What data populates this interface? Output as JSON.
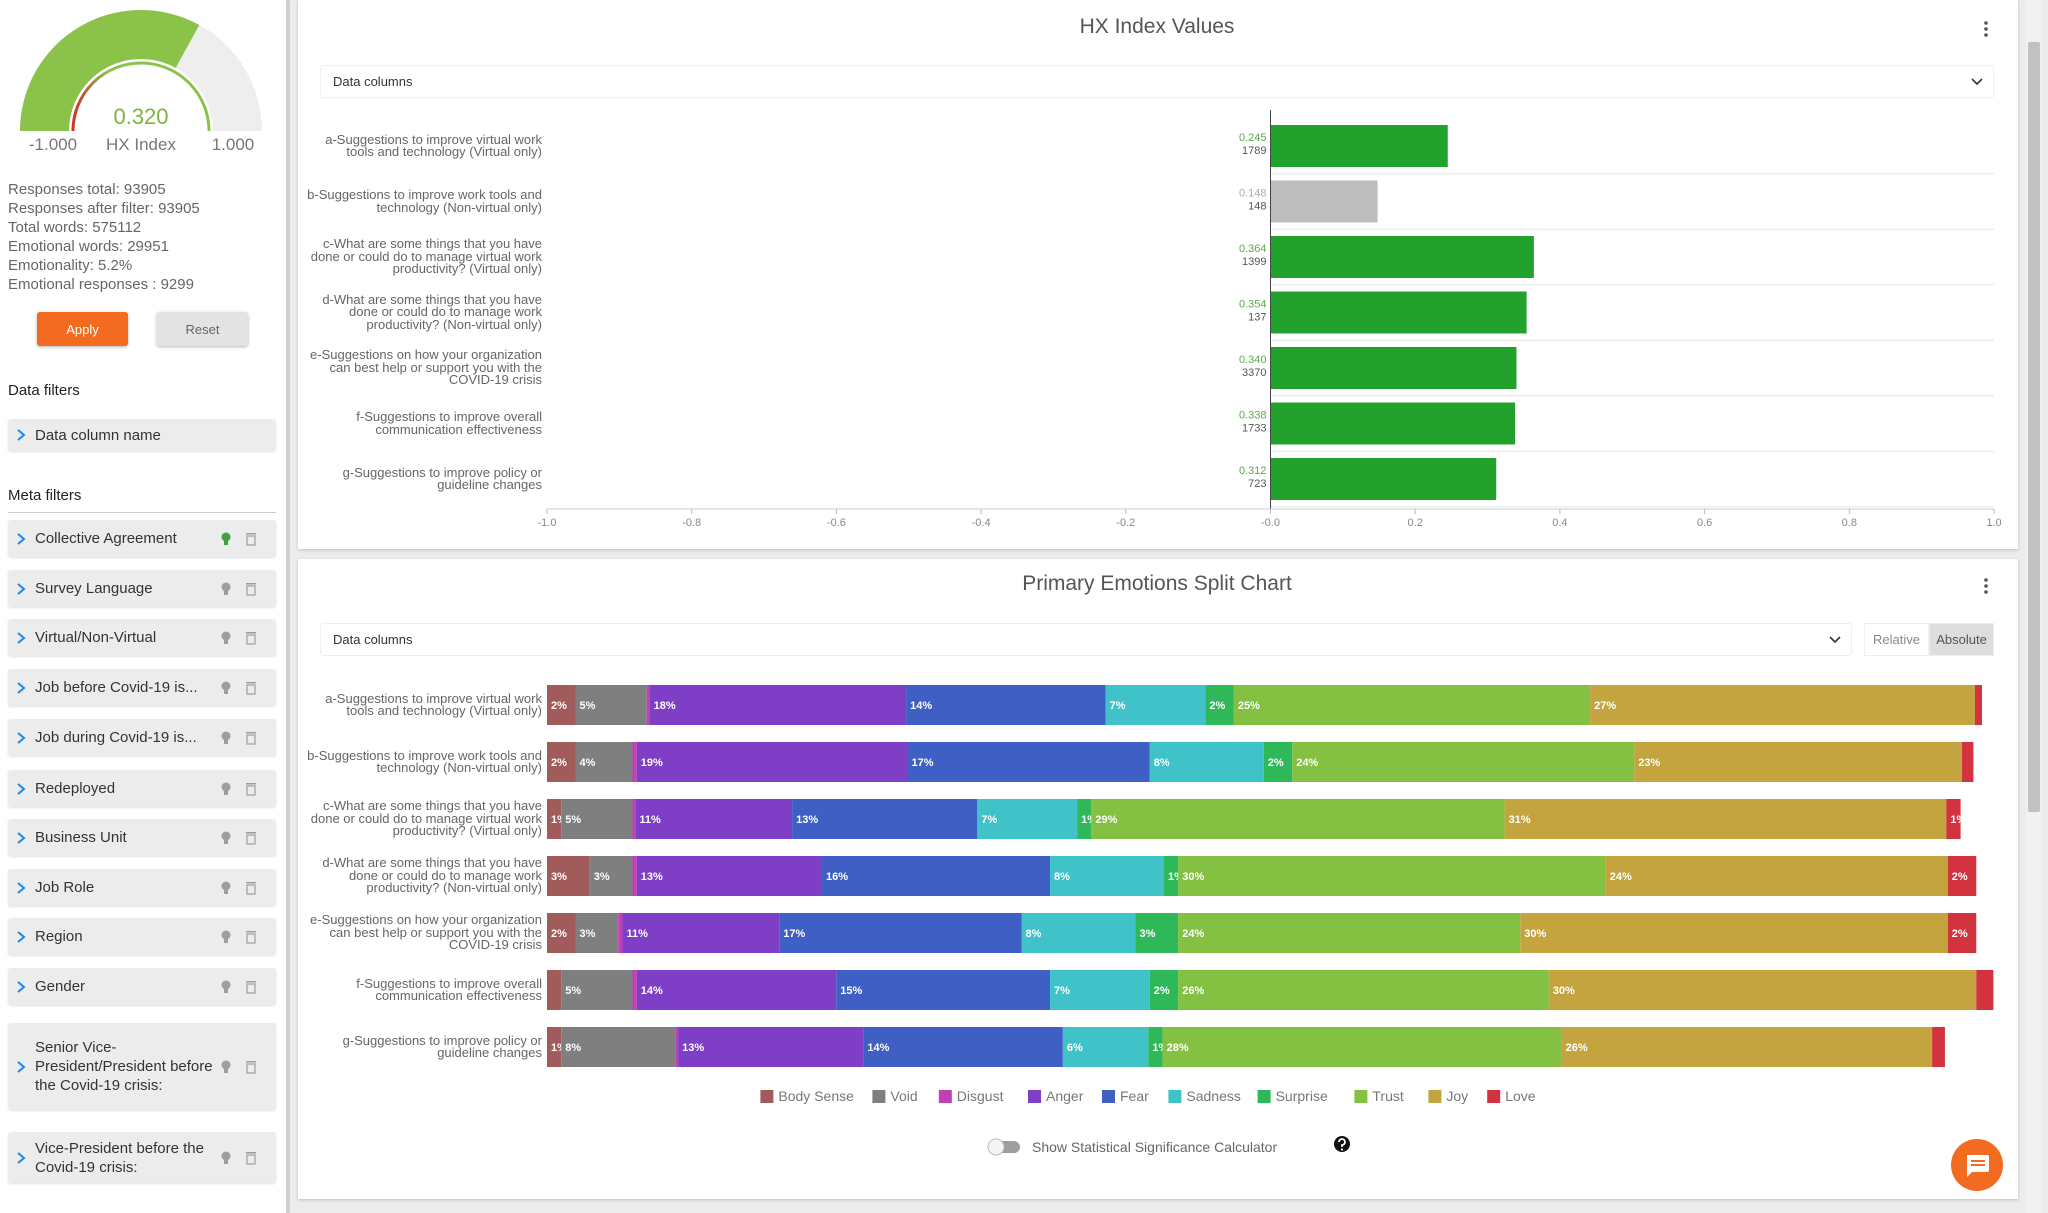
{
  "sidebar": {
    "gauge": {
      "value": 0.32,
      "value_label": "0.320",
      "caption": "HX Index",
      "min": {
        "value": -1,
        "label": "-1.000"
      },
      "max": {
        "value": 1,
        "label": "1.000"
      },
      "color": "#8bc34a"
    },
    "stats": [
      "Responses total: 93905",
      "Responses after filter: 93905",
      "Total words: 575112",
      "Emotional words: 29951",
      "Emotionality: 5.2%",
      "Emotional responses : 9299"
    ],
    "buttons": [
      "Apply",
      "Reset"
    ],
    "data_filters_title": "Data filters",
    "data_filters": [
      "Data column name"
    ],
    "meta_filters_title": "Meta filters",
    "meta_filters": [
      {
        "name": "Collective Agreement",
        "active": true
      },
      {
        "name": "Survey Language",
        "active": false
      },
      {
        "name": "Virtual/Non-Virtual",
        "active": false
      },
      {
        "name": "Job before Covid-19 is...",
        "active": false
      },
      {
        "name": "Job during Covid-19 is...",
        "active": false
      },
      {
        "name": "Redeployed",
        "active": false
      },
      {
        "name": "Business Unit",
        "active": false
      },
      {
        "name": "Job Role",
        "active": false
      },
      {
        "name": "Region",
        "active": false
      },
      {
        "name": "Gender",
        "active": false
      },
      {
        "name": "Senior Vice-President/President before the Covid-19 crisis:",
        "active": false
      },
      {
        "name": "Vice-President before the Covid-19 crisis:",
        "active": false
      }
    ]
  },
  "chart_data": [
    {
      "type": "hbar",
      "title": "HX Index Values",
      "dropdown": "Data columns",
      "categories": [
        "a-Suggestions to improve virtual work tools and technology (Virtual only)",
        "b-Suggestions to improve work tools and technology (Non-virtual only)",
        "c-What are some things that you have done or could do to manage virtual work productivity? (Virtual only)",
        "d-What are some things that you have done or could do to manage work productivity? (Non-virtual only)",
        "e-Suggestions on how your organization can best help or support you with the COVID-19 crisis",
        "f-Suggestions to improve overall communication effectiveness",
        "g-Suggestions to improve policy or guideline changes"
      ],
      "values": [
        0.245,
        0.148,
        0.364,
        0.354,
        0.34,
        0.338,
        0.312
      ],
      "value_labels": [
        "0.245",
        "0.148",
        "0.364",
        "0.354",
        "0.340",
        "0.338",
        "0.312"
      ],
      "counts": [
        1789,
        148,
        1399,
        137,
        3370,
        1733,
        723
      ],
      "colors": [
        "#22a22c",
        "#bdbdbd",
        "#22a22c",
        "#22a22c",
        "#22a22c",
        "#22a22c",
        "#22a22c"
      ],
      "xlim": [
        -1,
        1
      ],
      "xticks": [
        {
          "value": -1,
          "label": "-1.0"
        },
        -0.8,
        -0.6,
        -0.4,
        -0.2,
        {
          "value": 0,
          "label": "-0.0"
        },
        0.2,
        0.4,
        0.6,
        0.8,
        {
          "value": 1,
          "label": "1.0"
        }
      ]
    },
    {
      "type": "stacked_hbar",
      "title": "Primary Emotions Split Chart",
      "dropdown": "Data columns",
      "modes": [
        "Relative",
        "Absolute"
      ],
      "toggle_label": "Show Statistical Significance Calculator",
      "categories": [
        "a-Suggestions to improve virtual work tools and technology (Virtual only)",
        "b-Suggestions to improve work tools and technology (Non-virtual only)",
        "c-What are some things that you have done or could do to manage virtual work productivity? (Virtual only)",
        "d-What are some things that you have done or could do to manage work productivity? (Non-virtual only)",
        "e-Suggestions on how your organization can best help or support you with the COVID-19 crisis",
        "f-Suggestions to improve overall communication effectiveness",
        "g-Suggestions to improve policy or guideline changes"
      ],
      "series": [
        {
          "name": "Body Sense",
          "color": "#a25b5b",
          "values": [
            2,
            2,
            1,
            3,
            2,
            1,
            1
          ],
          "value_labels": [
            "2%",
            "2%",
            "1%",
            "3%",
            "2%",
            null,
            "1%"
          ]
        },
        {
          "name": "Void",
          "color": "#7f7f7f",
          "values": [
            5,
            4,
            5,
            3,
            3,
            5,
            8
          ],
          "value_labels": [
            "5%",
            "4%",
            "5%",
            "3%",
            "3%",
            "5%",
            "8%"
          ]
        },
        {
          "name": "Disgust",
          "color": "#c23fb5",
          "values": [
            0.2,
            0.3,
            0.2,
            0.3,
            0.3,
            0.3,
            0.2
          ],
          "value_labels": [
            null,
            null,
            null,
            null,
            null,
            null,
            null
          ]
        },
        {
          "name": "Anger",
          "color": "#7e3fc6",
          "values": [
            18,
            19,
            11,
            13,
            11,
            14,
            13
          ],
          "value_labels": [
            "18%",
            "19%",
            "11%",
            "13%",
            "11%",
            "14%",
            "13%"
          ]
        },
        {
          "name": "Fear",
          "color": "#3f5fc4",
          "values": [
            14,
            17,
            13,
            16,
            17,
            15,
            14
          ],
          "value_labels": [
            "14%",
            "17%",
            "13%",
            "16%",
            "17%",
            "15%",
            "14%"
          ]
        },
        {
          "name": "Sadness",
          "color": "#3fc3c8",
          "values": [
            7,
            8,
            7,
            8,
            8,
            7,
            6
          ],
          "value_labels": [
            "7%",
            "8%",
            "7%",
            "8%",
            "8%",
            "7%",
            "6%"
          ]
        },
        {
          "name": "Surprise",
          "color": "#2fb85a",
          "values": [
            2,
            2,
            1,
            1,
            3,
            2,
            1
          ],
          "value_labels": [
            "2%",
            "2%",
            "1%",
            "1%",
            "3%",
            "2%",
            "1%"
          ]
        },
        {
          "name": "Trust",
          "color": "#84c042",
          "values": [
            25,
            24,
            29,
            30,
            24,
            26,
            28
          ],
          "value_labels": [
            "25%",
            "24%",
            "29%",
            "30%",
            "24%",
            "26%",
            "28%"
          ]
        },
        {
          "name": "Joy",
          "color": "#c3a43f",
          "values": [
            27,
            23,
            31,
            24,
            30,
            30,
            26
          ],
          "value_labels": [
            "27%",
            "23%",
            "31%",
            "24%",
            "30%",
            "30%",
            "26%"
          ]
        },
        {
          "name": "Love",
          "color": "#d2333f",
          "values": [
            0.5,
            0.8,
            1,
            2,
            2,
            1.2,
            0.9
          ],
          "value_labels": [
            null,
            null,
            "1%",
            "2%",
            "2%",
            null,
            null
          ]
        }
      ]
    }
  ]
}
